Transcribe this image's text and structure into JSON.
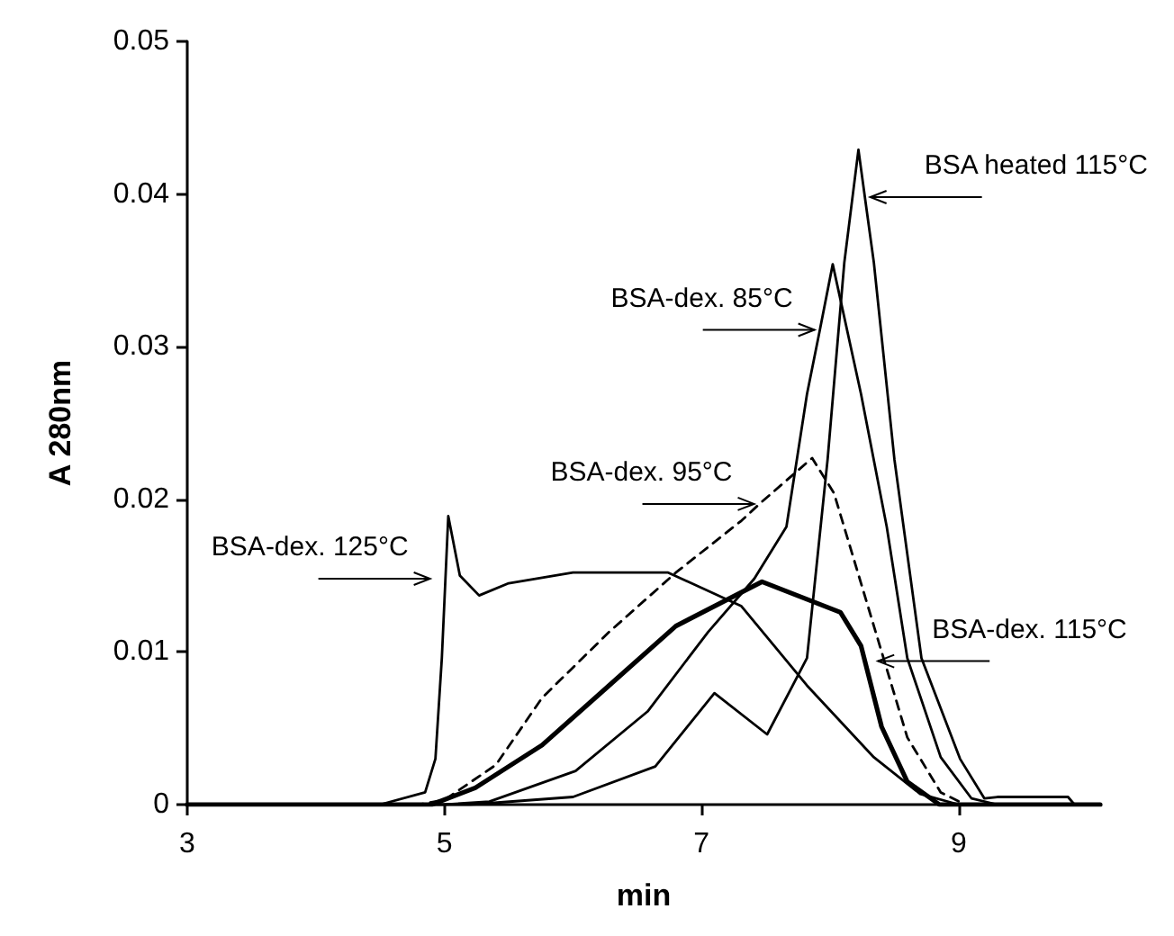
{
  "chart_data": {
    "type": "line",
    "xlabel": "min",
    "ylabel": "A 280nm",
    "xlim": [
      3,
      10.1
    ],
    "xticks": [
      3,
      5,
      7,
      9
    ],
    "ylim": [
      0,
      0.05
    ],
    "yticks": [
      0,
      0.01,
      0.02,
      0.03,
      0.04,
      0.05
    ],
    "grid": false,
    "marker": "none",
    "series": [
      {
        "color": "#000000",
        "line_style": "solid",
        "x": [
          3,
          4.5,
          4.85,
          4.93,
          4.98,
          5.03,
          5.12,
          5.27,
          5.5,
          6,
          6.74,
          7.31,
          7.82,
          8.34,
          8.7,
          9,
          10.1
        ],
        "values": [
          0,
          0,
          0.0008,
          0.003,
          0.0096,
          0.0189,
          0.015,
          0.0137,
          0.0145,
          0.0152,
          0.0152,
          0.013,
          0.0078,
          0.0031,
          0.0007,
          0,
          0
        ]
      },
      {
        "color": "#000000",
        "line_style": "solid",
        "x": [
          3,
          5.2,
          6,
          6.64,
          7.1,
          7.51,
          7.82,
          7.98,
          8.11,
          8.22,
          8.27,
          8.34,
          8.5,
          8.71,
          9.01,
          9.2,
          9.3,
          9.85,
          9.9,
          10.1
        ],
        "values": [
          0,
          0,
          0.0005,
          0.0025,
          0.0073,
          0.0046,
          0.0096,
          0.0226,
          0.0355,
          0.0429,
          0.0398,
          0.0355,
          0.0226,
          0.0096,
          0.003,
          0.0004,
          0.0005,
          0.0005,
          0,
          0
        ]
      },
      {
        "color": "#000000",
        "line_style": "solid",
        "x": [
          3,
          5,
          5.35,
          6.02,
          6.58,
          7.05,
          7.41,
          7.66,
          7.82,
          7.92,
          8.02,
          8.24,
          8.44,
          8.6,
          8.86,
          9.1,
          9.3,
          10.1
        ],
        "values": [
          0,
          0,
          0.0002,
          0.0022,
          0.0061,
          0.0113,
          0.0148,
          0.0182,
          0.0269,
          0.0311,
          0.0354,
          0.0269,
          0.0182,
          0.0096,
          0.0031,
          0.0004,
          0,
          0
        ]
      },
      {
        "color": "#000000",
        "line_style": "dashed",
        "x": [
          3,
          4.8,
          5,
          5.4,
          5.76,
          6.28,
          6.8,
          7.31,
          7.45,
          7.86,
          8.03,
          8.34,
          8.6,
          8.86,
          9.05,
          10.1
        ],
        "values": [
          0,
          0,
          0.0003,
          0.0026,
          0.007,
          0.0113,
          0.0152,
          0.0186,
          0.0197,
          0.0227,
          0.0204,
          0.0117,
          0.0044,
          0.0008,
          0,
          0
        ]
      },
      {
        "color": "#000000",
        "line_style": "solid",
        "x": [
          3,
          4.9,
          5.24,
          5.76,
          6.28,
          6.8,
          7.47,
          8.08,
          8.24,
          8.4,
          8.6,
          8.85,
          10.1
        ],
        "values": [
          0,
          0,
          0.0011,
          0.0039,
          0.0078,
          0.0117,
          0.0146,
          0.0126,
          0.0104,
          0.0051,
          0.0015,
          0,
          0
        ]
      }
    ],
    "annotations": [
      {
        "text": "BSA heated 115°C",
        "x": 8.27,
        "y": 0.0398
      },
      {
        "text": "BSA-dex. 85°C",
        "x": 7.92,
        "y": 0.0311
      },
      {
        "text": "BSA-dex. 95°C",
        "x": 7.45,
        "y": 0.0197
      },
      {
        "text": "BSA-dex. 125°C",
        "x": 4.93,
        "y": 0.0148
      },
      {
        "text": "BSA-dex. 115°C",
        "x": 8.33,
        "y": 0.0094
      }
    ]
  }
}
